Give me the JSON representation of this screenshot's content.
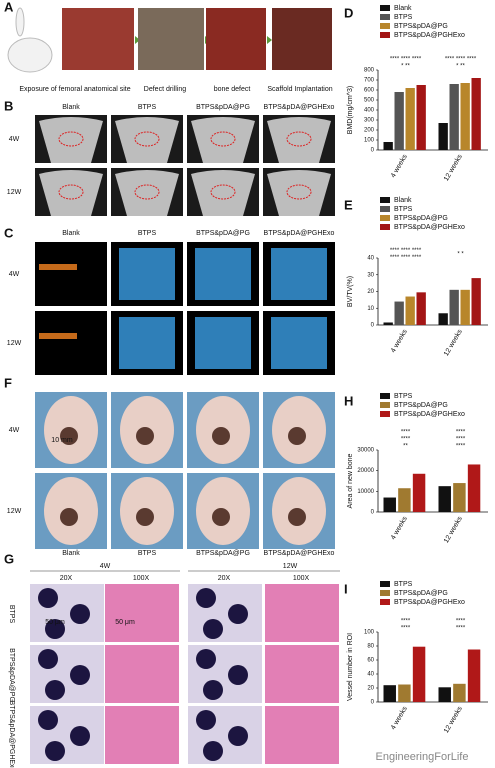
{
  "figure": {
    "A": {
      "label": "A",
      "captions": [
        "Exposure of femoral anatomical site",
        "Defect drilling",
        "bone defect",
        "Scaffold Implantation"
      ]
    },
    "B": {
      "label": "B",
      "columns": [
        "Blank",
        "BTPS",
        "BTPS&pDA@PG",
        "BTPS&pDA@PGHExo"
      ],
      "rows": [
        "4W",
        "12W"
      ]
    },
    "C": {
      "label": "C",
      "columns": [
        "Blank",
        "BTPS",
        "BTPS&pDA@PG",
        "BTPS&pDA@PGHExo"
      ],
      "rows": [
        "4W",
        "12W"
      ]
    },
    "F": {
      "label": "F",
      "columns": [
        "Blank",
        "BTPS",
        "BTPS&pDA@PG",
        "BTPS&pDA@PGHExo"
      ],
      "rows": [
        "4W",
        "12W"
      ],
      "scale": "10 mm"
    },
    "G": {
      "label": "G",
      "groups": [
        "4W",
        "12W"
      ],
      "magnifications": [
        "20X",
        "100X",
        "20X",
        "100X"
      ],
      "rows": [
        "BTPS",
        "BTPS&pDA@PG",
        "BTPS&pDA@PGHExo"
      ],
      "scales": [
        "50 μm",
        "50 μm"
      ]
    }
  },
  "watermark": "EngineeringForLife",
  "chart_data": [
    {
      "type": "bar",
      "panel_label": "D",
      "y_label": "BMD(mg/cm^3)",
      "categories": [
        "4 weeks",
        "12 weeks"
      ],
      "series": [
        {
          "name": "Blank",
          "color": "#111111",
          "values": [
            80,
            270
          ]
        },
        {
          "name": "BTPS",
          "color": "#555555",
          "values": [
            580,
            660
          ]
        },
        {
          "name": "BTPS&pDA@PG",
          "color": "#b8862b",
          "values": [
            620,
            670
          ]
        },
        {
          "name": "BTPS&pDA@PGHExo",
          "color": "#a31515",
          "values": [
            650,
            720
          ]
        }
      ],
      "ylim": [
        0,
        800
      ],
      "yticks": [
        0,
        100,
        200,
        300,
        400,
        500,
        600,
        700,
        800
      ],
      "significance": [
        "**** **** ****",
        "* **",
        "**** **** ****",
        "* **"
      ]
    },
    {
      "type": "bar",
      "panel_label": "E",
      "y_label": "BV/TV(%)",
      "categories": [
        "4 weeks",
        "12 weeks"
      ],
      "series": [
        {
          "name": "Blank",
          "color": "#111111",
          "values": [
            1.5,
            7
          ]
        },
        {
          "name": "BTPS",
          "color": "#555555",
          "values": [
            14,
            21
          ]
        },
        {
          "name": "BTPS&pDA@PG",
          "color": "#b8862b",
          "values": [
            17,
            21
          ]
        },
        {
          "name": "BTPS&pDA@PGHExo",
          "color": "#a31515",
          "values": [
            19.5,
            28
          ]
        }
      ],
      "ylim": [
        0,
        40
      ],
      "yticks": [
        0,
        10,
        20,
        30,
        40
      ],
      "significance": [
        "**** **** ****",
        "**** **** ****",
        "* *"
      ]
    },
    {
      "type": "bar",
      "panel_label": "H",
      "y_label": "Area of new bone",
      "categories": [
        "4 weeks",
        "12 weeks"
      ],
      "series": [
        {
          "name": "BTPS",
          "color": "#111111",
          "values": [
            7000,
            12500
          ]
        },
        {
          "name": "BTPS&pDA@PG",
          "color": "#a07a30",
          "values": [
            11500,
            14000
          ]
        },
        {
          "name": "BTPS&pDA@PGHExo",
          "color": "#b01818",
          "values": [
            18500,
            23000
          ]
        }
      ],
      "ylim": [
        0,
        30000
      ],
      "yticks": [
        0,
        10000,
        20000,
        30000
      ],
      "significance": [
        "****",
        "****",
        "**",
        "****",
        "****",
        "****"
      ]
    },
    {
      "type": "bar",
      "panel_label": "I",
      "y_label": "Vessel number in ROI",
      "categories": [
        "4 weeks",
        "12 weeks"
      ],
      "series": [
        {
          "name": "BTPS",
          "color": "#111111",
          "values": [
            24,
            21
          ]
        },
        {
          "name": "BTPS&pDA@PG",
          "color": "#a07a30",
          "values": [
            25,
            26
          ]
        },
        {
          "name": "BTPS&pDA@PGHExo",
          "color": "#b01818",
          "values": [
            79,
            75
          ]
        }
      ],
      "ylim": [
        0,
        100
      ],
      "yticks": [
        0,
        20,
        40,
        60,
        80,
        100
      ],
      "significance": [
        "****",
        "****",
        "****",
        "****"
      ]
    }
  ]
}
